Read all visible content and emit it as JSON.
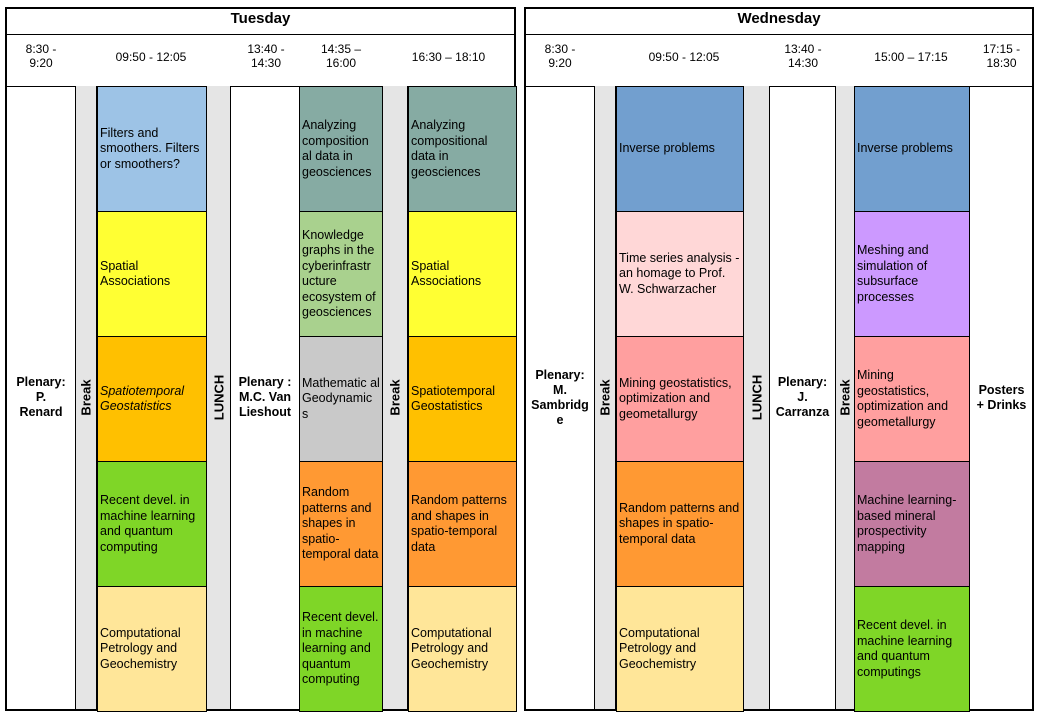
{
  "tuesday": {
    "title": "Tuesday",
    "times": [
      "8:30 -\n9:20",
      "09:50 - 12:05",
      "13:40 -\n14:30",
      "14:35 –\n16:00",
      "16:30 – 18:10"
    ],
    "plenary1": "Plenary:\nP.\nRenard",
    "break_label": "Break",
    "lunch_label": "LUNCH",
    "plenary2": "Plenary :\nM.C. Van\nLieshout",
    "break2_label": "Break",
    "col_a": [
      {
        "text": "Filters and smoothers. Filters or smoothers?",
        "color": "#9dc3e6",
        "italic": false
      },
      {
        "text": "Spatial Associations",
        "color": "#ffff33",
        "italic": false
      },
      {
        "text": "Spatiotemporal Geostatistics",
        "color": "#ffc000",
        "italic": true
      },
      {
        "text": "Recent devel. in machine learning and quantum computing",
        "color": "#7fd627",
        "italic": false
      },
      {
        "text": "Computational Petrology and Geochemistry",
        "color": "#ffe699",
        "italic": false
      }
    ],
    "col_b": [
      {
        "text": "Analyzing composition al data in geosciences",
        "color": "#86aba3",
        "italic": false
      },
      {
        "text": "Knowledge graphs in the cyberinfrastr ucture ecosystem of geosciences",
        "color": "#a9d18e",
        "italic": false
      },
      {
        "text": "Mathematic al Geodynamic s",
        "color": "#c9c9c9",
        "italic": false
      },
      {
        "text": "Random patterns and shapes in spatio-temporal data",
        "color": "#ff9933",
        "italic": false
      },
      {
        "text": "Recent devel. in machine learning and quantum computing",
        "color": "#7fd627",
        "italic": false
      }
    ],
    "col_c": [
      {
        "text": "Analyzing compositional data in geosciences",
        "color": "#86aba3",
        "italic": false
      },
      {
        "text": "Spatial Associations",
        "color": "#ffff33",
        "italic": false
      },
      {
        "text": "Spatiotemporal Geostatistics",
        "color": "#ffc000",
        "italic": false
      },
      {
        "text": "Random patterns and shapes in spatio-temporal data",
        "color": "#ff9933",
        "italic": false
      },
      {
        "text": "Computational Petrology and Geochemistry",
        "color": "#ffe699",
        "italic": false
      }
    ]
  },
  "wednesday": {
    "title": "Wednesday",
    "times": [
      "8:30 -\n9:20",
      "09:50 - 12:05",
      "13:40 -\n14:30",
      "15:00 – 17:15",
      "17:15 -\n18:30"
    ],
    "plenary1": "Plenary:\nM.\nSambridg\ne",
    "break_label": "Break",
    "lunch_label": "LUNCH",
    "plenary2": "Plenary:\nJ.\nCarranza",
    "break2_label": "Break",
    "posters": "Posters\n+ Drinks",
    "col_a": [
      {
        "text": "Inverse problems",
        "color": "#729fcf",
        "italic": false
      },
      {
        "text": "Time series analysis - an homage to Prof. W. Schwarzacher",
        "color": "#ffd7d7",
        "italic": false
      },
      {
        "text": "Mining geostatistics, optimization and geometallurgy",
        "color": "#ff9f9f",
        "italic": false
      },
      {
        "text": "Random patterns and shapes in spatio-temporal data",
        "color": "#ff9933",
        "italic": false
      },
      {
        "text": "Computational Petrology and Geochemistry",
        "color": "#ffe699",
        "italic": false
      }
    ],
    "col_b": [
      {
        "text": "Inverse problems",
        "color": "#729fcf",
        "italic": false
      },
      {
        "text": "Meshing and simulation of subsurface processes",
        "color": "#cc99ff",
        "italic": false
      },
      {
        "text": "Mining geostatistics, optimization and geometallurgy",
        "color": "#ff9f9f",
        "italic": false
      },
      {
        "text": "Machine learning-based mineral prospectivity mapping",
        "color": "#c27ba0",
        "italic": false
      },
      {
        "text": "Recent devel. in machine learning and quantum computings",
        "color": "#7fd627",
        "italic": false
      }
    ]
  }
}
